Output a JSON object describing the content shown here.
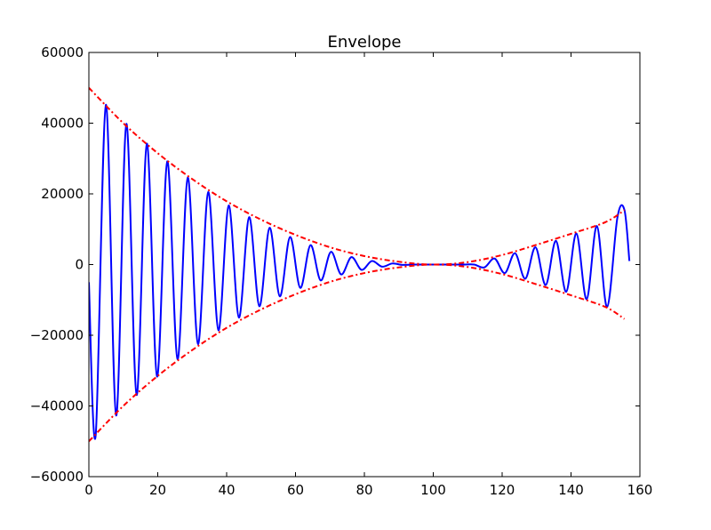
{
  "chart_data": {
    "type": "line",
    "title": "Envelope",
    "xlabel": "",
    "ylabel": "",
    "xlim": [
      0,
      160
    ],
    "ylim": [
      -60000,
      60000
    ],
    "x_ticks": [
      0,
      20,
      40,
      60,
      80,
      100,
      120,
      140,
      160
    ],
    "y_ticks": [
      60000,
      40000,
      20000,
      0,
      -20000,
      -40000,
      -60000
    ],
    "x_tick_labels": [
      "0",
      "20",
      "40",
      "60",
      "80",
      "100",
      "120",
      "140",
      "160"
    ],
    "y_tick_labels": [
      "60000",
      "40000",
      "20000",
      "0",
      "−20000",
      "−40000",
      "−60000"
    ],
    "grid": false,
    "series": [
      {
        "style": "solid",
        "color": "#0000ff",
        "x": [
          0,
          1.98,
          4.95,
          7.92,
          10.89,
          13.86,
          16.83,
          19.8,
          22.77,
          25.74,
          28.71,
          31.68,
          34.65,
          37.62,
          40.59,
          43.56,
          46.53,
          49.5,
          52.47,
          55.44,
          58.41,
          61.38,
          64.35,
          67.32,
          70.29,
          73.26,
          76.23,
          79.2,
          82.17,
          85.14,
          88.11,
          91.08,
          94.05,
          97.02,
          99.99,
          102.96,
          105.93,
          108.9,
          111.87,
          114.84,
          117.81,
          120.78,
          123.75,
          126.72,
          129.69,
          132.66,
          135.63,
          138.6,
          141.57,
          144.54,
          147.51,
          150.48,
          153.45,
          155.52,
          156.95
        ],
        "y": [
          -5000,
          -48300,
          45200,
          -42700,
          39800,
          -36900,
          34200,
          -31700,
          29200,
          -26800,
          24600,
          -22500,
          20500,
          -18600,
          16700,
          -15000,
          13400,
          -11800,
          10400,
          -9000,
          7800,
          -6600,
          5500,
          -4500,
          3600,
          -2800,
          2100,
          -1500,
          1000,
          -600,
          300,
          -100,
          0,
          0,
          0,
          0,
          0,
          0,
          0,
          -800,
          1700,
          -2400,
          3200,
          -4000,
          4900,
          -5800,
          6700,
          -7700,
          8800,
          -9800,
          10900,
          -12000,
          13200,
          15400,
          1000
        ]
      },
      {
        "style": "dashdot",
        "color": "#ff0000",
        "x": [
          0,
          10,
          20,
          30,
          40,
          50,
          60,
          70,
          80,
          90,
          100,
          110,
          120,
          130,
          140,
          150,
          155.5
        ],
        "y": [
          50000,
          40000,
          31500,
          24200,
          17900,
          12700,
          8400,
          4900,
          2400,
          800,
          0,
          700,
          2700,
          5600,
          8700,
          12000,
          15400
        ]
      },
      {
        "style": "dashdot",
        "color": "#ff0000",
        "x": [
          0,
          10,
          20,
          30,
          40,
          50,
          60,
          70,
          80,
          90,
          100,
          110,
          120,
          130,
          140,
          150,
          155.5
        ],
        "y": [
          -50000,
          -40000,
          -31500,
          -24200,
          -17900,
          -12700,
          -8400,
          -4900,
          -2400,
          -800,
          0,
          -700,
          -2700,
          -5600,
          -8700,
          -12000,
          -15400
        ]
      }
    ]
  }
}
